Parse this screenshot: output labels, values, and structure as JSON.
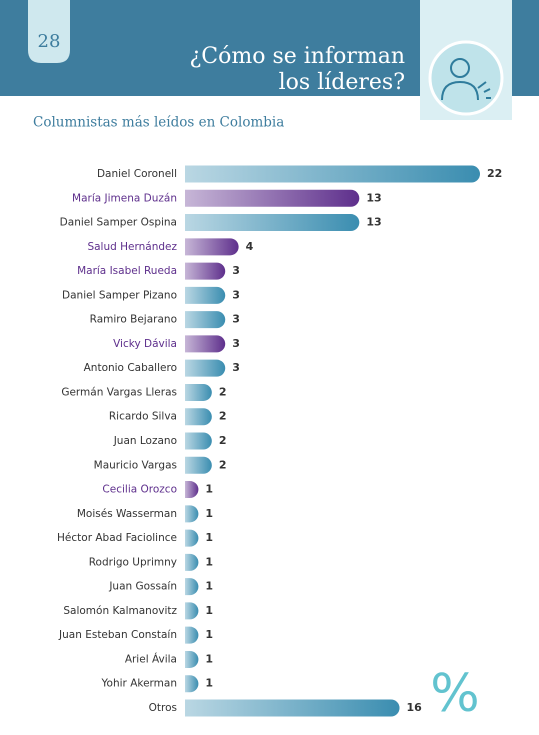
{
  "page_number": "28",
  "header": {
    "title_lines": [
      "¿Cómo se informan",
      "los líderes?"
    ]
  },
  "watermark": "%",
  "chart_data": {
    "type": "bar",
    "orientation": "horizontal",
    "title": "Columnistas más leídos en Colombia",
    "categories": [
      "Daniel Coronell",
      "María Jimena Duzán",
      "Daniel Samper Ospina",
      "Salud Hernández",
      "María Isabel Rueda",
      "Daniel Samper Pizano",
      "Ramiro Bejarano",
      "Vicky Dávila",
      "Antonio Caballero",
      "Germán Vargas Lleras",
      "Ricardo Silva",
      "Juan Lozano",
      "Mauricio Vargas",
      "Cecilia Orozco",
      "Moisés Wasserman",
      "Héctor Abad Faciolince",
      "Rodrigo Uprimny",
      "Juan Gossaín",
      "Salomón Kalmanovitz",
      "Juan Esteban Constaín",
      "Ariel Ávila",
      "Yohir Akerman",
      "Otros"
    ],
    "values": [
      22,
      13,
      13,
      4,
      3,
      3,
      3,
      3,
      3,
      2,
      2,
      2,
      2,
      1,
      1,
      1,
      1,
      1,
      1,
      1,
      1,
      1,
      16
    ],
    "colors": [
      "#3a8db0",
      "#5e2f8c",
      "#3a8db0",
      "#5e2f8c",
      "#5e2f8c",
      "#3a8db0",
      "#3a8db0",
      "#5e2f8c",
      "#3a8db0",
      "#3a8db0",
      "#3a8db0",
      "#3a8db0",
      "#3a8db0",
      "#5e2f8c",
      "#3a8db0",
      "#3a8db0",
      "#3a8db0",
      "#3a8db0",
      "#3a8db0",
      "#3a8db0",
      "#3a8db0",
      "#3a8db0",
      "#3a8db0"
    ]
  }
}
